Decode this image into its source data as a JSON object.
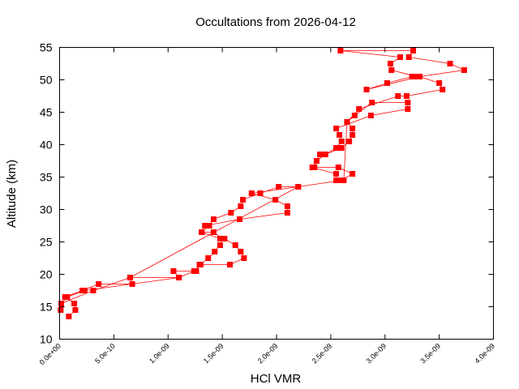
{
  "chart_data": {
    "type": "line",
    "title": "Occultations from 2026-04-12",
    "xlabel": "HCl VMR",
    "ylabel": "Altitude (km)",
    "xlim": [
      0,
      4e-09
    ],
    "ylim": [
      10,
      55
    ],
    "xticks": [
      0,
      5e-10,
      1e-09,
      1.5e-09,
      2e-09,
      2.5e-09,
      3e-09,
      3.5e-09,
      4e-09
    ],
    "xtick_labels": [
      "0.0e+00",
      "5.0e-10",
      "1.0e-09",
      "1.5e-09",
      "2.0e-09",
      "2.5e-09",
      "3.0e-09",
      "3.5e-09",
      "4.0e-09"
    ],
    "yticks": [
      10,
      15,
      20,
      25,
      30,
      35,
      40,
      45,
      50,
      55
    ],
    "ytick_labels": [
      "10",
      "15",
      "20",
      "25",
      "30",
      "35",
      "40",
      "45",
      "50",
      "55"
    ],
    "grid": false,
    "series_color": "#ff0000",
    "series": [
      {
        "points": [
          [
            8.5e-11,
            13.5
          ],
          [
            1.45e-10,
            14.5
          ],
          [
            1.35e-10,
            15.5
          ],
          [
            5e-11,
            16.5
          ],
          [
            2.1e-10,
            17.5
          ],
          [
            3.6e-10,
            18.5
          ],
          [
            6.7e-10,
            18.5
          ],
          [
            6.5e-10,
            19.5
          ],
          [
            1.1e-09,
            19.5
          ],
          [
            1.05e-09,
            20.5
          ],
          [
            1.26e-09,
            20.5
          ],
          [
            1.29e-09,
            21.5
          ],
          [
            1.57e-09,
            21.5
          ],
          [
            1.7e-09,
            22.5
          ],
          [
            1.67e-09,
            23.5
          ],
          [
            1.62e-09,
            24.5
          ],
          [
            1.52e-09,
            25.5
          ],
          [
            1.48e-09,
            25.5
          ],
          [
            1.31e-09,
            26.5
          ],
          [
            1.34e-09,
            27.5
          ],
          [
            1.66e-09,
            28.5
          ],
          [
            2.1e-09,
            29.5
          ],
          [
            2.1e-09,
            30.5
          ],
          [
            1.99e-09,
            31.5
          ],
          [
            1.77e-09,
            32.5
          ],
          [
            2.2e-09,
            33.5
          ],
          [
            2.02e-09,
            33.5
          ],
          [
            1.85e-09,
            32.5
          ],
          [
            1.69e-09,
            31.5
          ],
          [
            1.67e-09,
            30.5
          ],
          [
            1.58e-09,
            29.5
          ],
          [
            1.42e-09,
            28.5
          ],
          [
            1.38e-09,
            27.5
          ],
          [
            1.31e-09,
            26.5
          ],
          [
            1.42e-09,
            26.5
          ],
          [
            1.5e-09,
            25.5
          ],
          [
            1.48e-09,
            24.5
          ],
          [
            1.43e-09,
            23.5
          ],
          [
            1.37e-09,
            22.5
          ],
          [
            1.3e-09,
            21.5
          ],
          [
            1.24e-09,
            20.5
          ],
          [
            1.1e-09,
            19.5
          ],
          [
            2.3e-10,
            17.5
          ],
          [
            7e-11,
            16.5
          ],
          [
            1.5e-11,
            15.5
          ],
          [
            1e-11,
            14.5
          ],
          [
            1.5e-11,
            15.5
          ],
          [
            3.1e-10,
            17.5
          ],
          [
            6.5e-10,
            19.5
          ],
          [
            2.2e-09,
            33.5
          ],
          [
            2.6e-09,
            34.5
          ],
          [
            2.7e-09,
            35.5
          ],
          [
            2.57e-09,
            36.5
          ],
          [
            2.35e-09,
            36.5
          ],
          [
            2.37e-09,
            37.5
          ],
          [
            2.4e-09,
            38.5
          ],
          [
            2.45e-09,
            38.5
          ],
          [
            2.6e-09,
            39.5
          ],
          [
            2.67e-09,
            40.5
          ],
          [
            2.7e-09,
            41.5
          ],
          [
            2.7e-09,
            42.5
          ],
          [
            2.65e-09,
            43.5
          ],
          [
            2.72e-09,
            44.5
          ],
          [
            2.88e-09,
            46.5
          ],
          [
            3.21e-09,
            46.5
          ],
          [
            3.21e-09,
            45.5
          ],
          [
            2.87e-09,
            44.5
          ],
          [
            2.55e-09,
            42.5
          ],
          [
            2.58e-09,
            41.5
          ],
          [
            2.6e-09,
            40.5
          ],
          [
            2.55e-09,
            39.5
          ],
          [
            2.45e-09,
            38.5
          ],
          [
            2.37e-09,
            37.5
          ],
          [
            2.33e-09,
            36.5
          ],
          [
            2.55e-09,
            35.5
          ],
          [
            2.55e-09,
            34.5
          ],
          [
            2.62e-09,
            34.5
          ],
          [
            2.65e-09,
            43.5
          ],
          [
            2.76e-09,
            45.5
          ],
          [
            3.12e-09,
            47.5
          ],
          [
            3.2e-09,
            47.5
          ],
          [
            3.53e-09,
            48.5
          ],
          [
            3.5e-09,
            49.5
          ],
          [
            3.32e-09,
            50.5
          ],
          [
            3.25e-09,
            50.5
          ],
          [
            3.02e-09,
            49.5
          ],
          [
            2.83e-09,
            48.5
          ],
          [
            3.32e-09,
            50.5
          ],
          [
            3.73e-09,
            51.5
          ],
          [
            3.6e-09,
            52.5
          ],
          [
            3.22e-09,
            53.5
          ],
          [
            3.26e-09,
            54.5
          ],
          [
            2.59e-09,
            54.5
          ],
          [
            3.14e-09,
            53.5
          ],
          [
            3.05e-09,
            52.5
          ],
          [
            3.06e-09,
            51.5
          ],
          [
            3.29e-09,
            50.5
          ]
        ]
      }
    ]
  }
}
